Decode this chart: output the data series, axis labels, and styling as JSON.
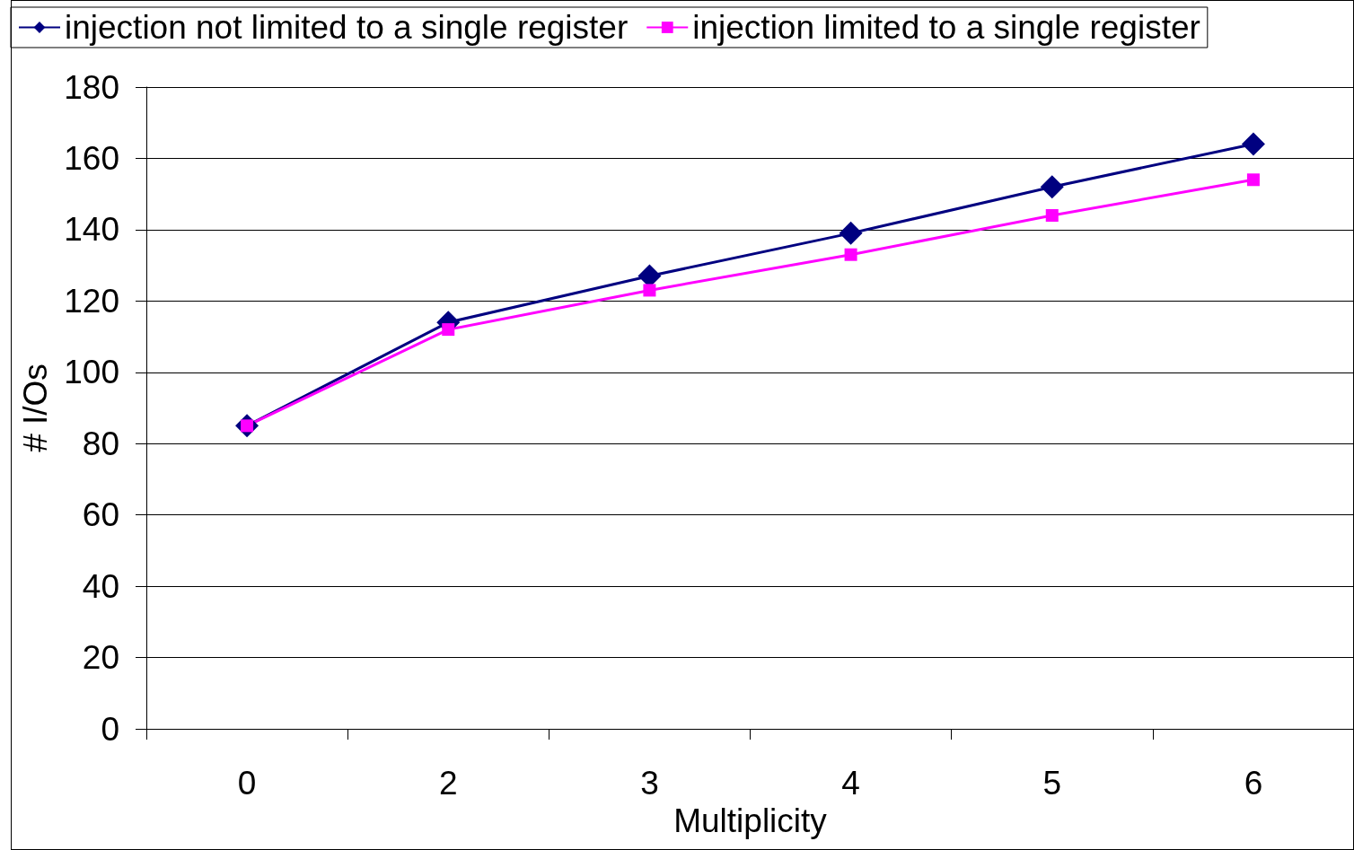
{
  "chart_data": {
    "type": "line",
    "xlabel": "Multiplicity",
    "ylabel": "# I/Os",
    "categories": [
      "0",
      "2",
      "3",
      "4",
      "5",
      "6"
    ],
    "series": [
      {
        "name": "injection not limited to a single register",
        "color": "#000080",
        "marker": "diamond",
        "values": [
          85,
          114,
          127,
          139,
          152,
          164
        ]
      },
      {
        "name": "injection limited to a single register",
        "color": "#ff00ff",
        "marker": "square",
        "values": [
          85,
          112,
          123,
          133,
          144,
          154
        ]
      }
    ],
    "ylim": [
      0,
      180
    ],
    "yticks": [
      0,
      20,
      40,
      60,
      80,
      100,
      120,
      140,
      160,
      180
    ],
    "grid": "y",
    "legend": "top left",
    "line_style": "solid"
  }
}
